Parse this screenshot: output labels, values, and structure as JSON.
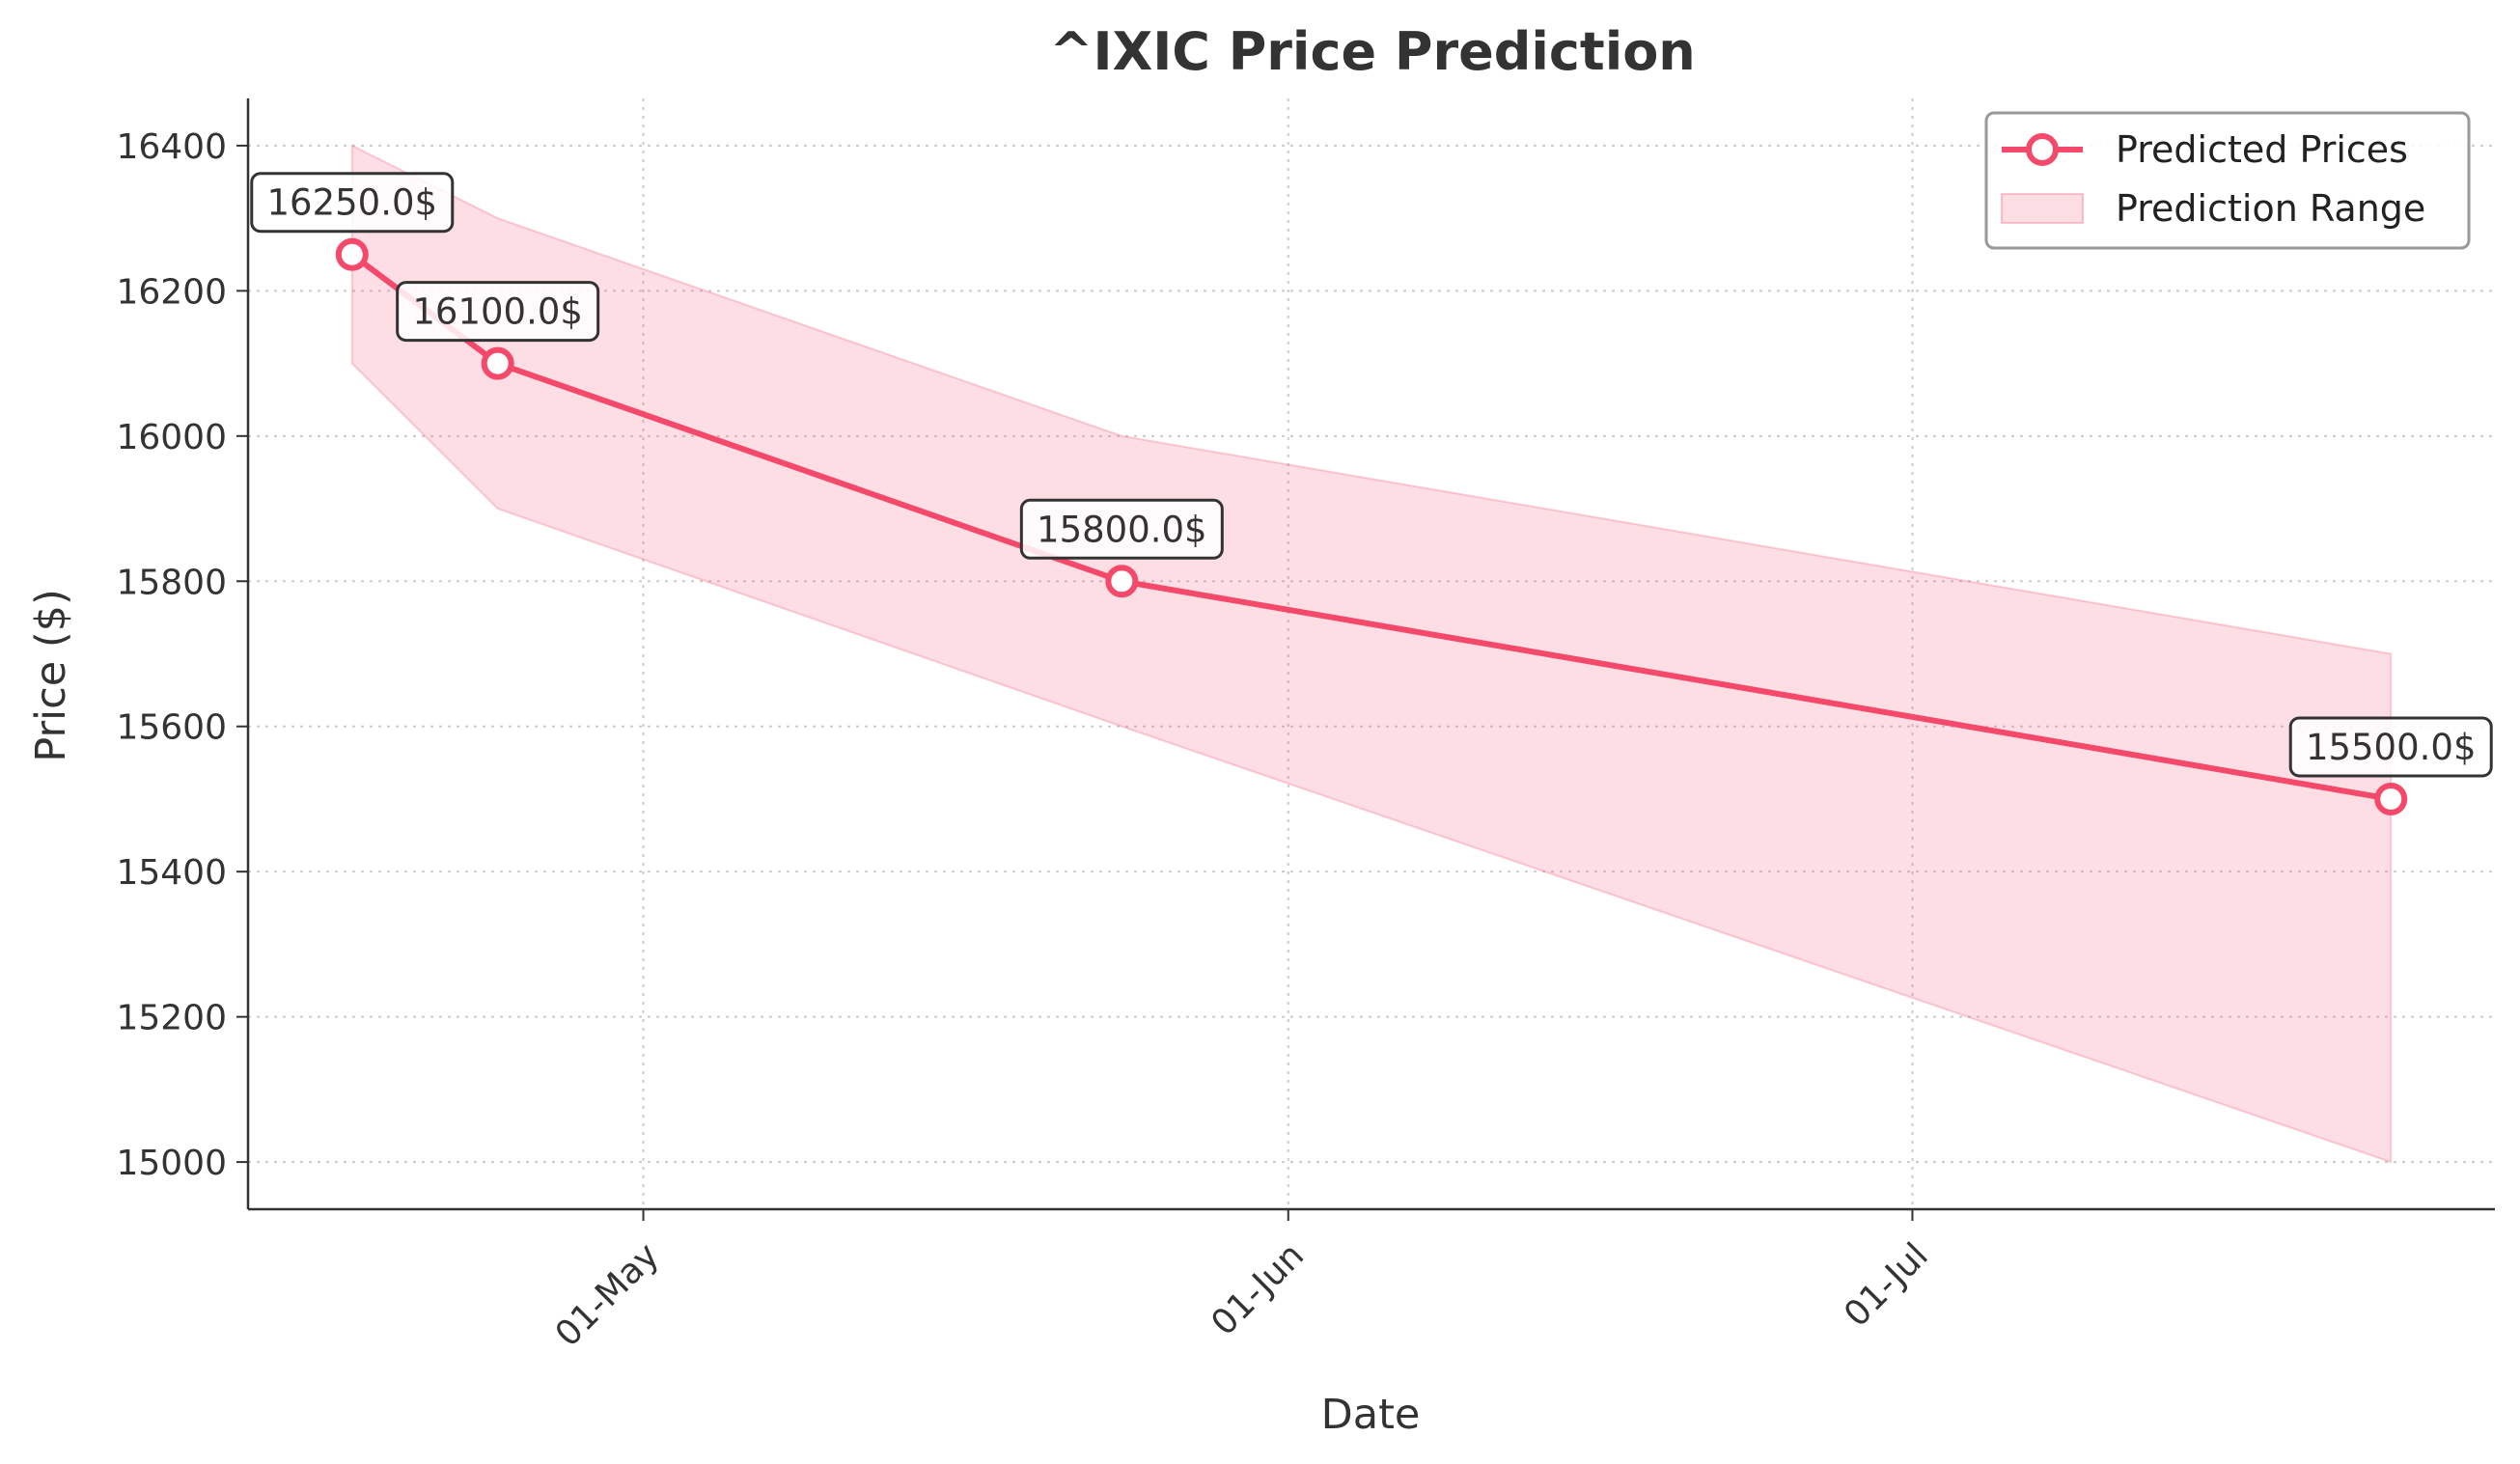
{
  "chart_data": {
    "type": "line",
    "title": "^IXIC Price Prediction",
    "xlabel": "Date",
    "ylabel": "Price ($)",
    "x": [
      "2024-04-17",
      "2024-04-24",
      "2024-05-24",
      "2024-07-24"
    ],
    "x_ticks": [
      {
        "date": "2024-05-01",
        "label": "01-May"
      },
      {
        "date": "2024-06-01",
        "label": "01-Jun"
      },
      {
        "date": "2024-07-01",
        "label": "01-Jul"
      }
    ],
    "xlim": [
      "2024-04-12",
      "2024-07-29"
    ],
    "y_ticks": [
      15000,
      15200,
      15400,
      15600,
      15800,
      16000,
      16200,
      16400
    ],
    "ylim": [
      14935,
      16465
    ],
    "grid": true,
    "legend_position": "top-right",
    "series": [
      {
        "name": "Predicted Prices",
        "values": [
          16250,
          16100,
          15800,
          15500
        ],
        "color": "#f4496a"
      }
    ],
    "range": {
      "name": "Prediction Range",
      "lower": [
        16100,
        15900,
        15600,
        15000
      ],
      "upper": [
        16400,
        16300,
        16000,
        15700
      ],
      "color": "#f4496a",
      "opacity": 0.18
    },
    "annotations": [
      "16250.0$",
      "16100.0$",
      "15800.0$",
      "15500.0$"
    ]
  }
}
